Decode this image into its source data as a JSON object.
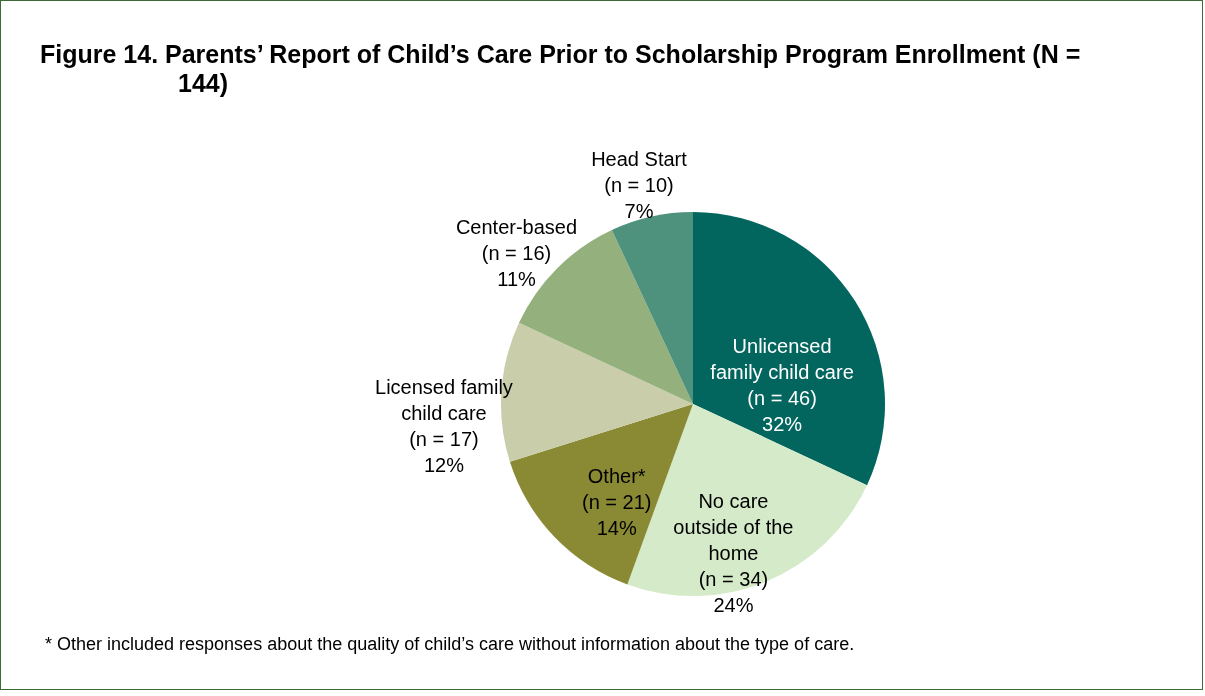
{
  "chart_data": {
    "type": "pie",
    "title": "Figure 14. Parents’ Report of Child’s Care Prior to Scholarship Program Enrollment (N = 144)",
    "categories": [
      "Unlicensed\nfamily child care",
      "No care\noutside of the\nhome",
      "Other*",
      "Licensed family\nchild care",
      "Center-based",
      "Head Start"
    ],
    "values": [
      46,
      34,
      21,
      17,
      16,
      10
    ],
    "value_labels": [
      "(n = 46)\n32%",
      "(n = 34)\n24%",
      "(n = 21)\n14%",
      "(n = 17)\n12%",
      "(n = 16)\n11%",
      "(n = 10)\n7%"
    ],
    "colors": [
      "#02665f",
      "#d4eac8",
      "#8a8a35",
      "#c9cdaa",
      "#94b07c",
      "#4e917c"
    ],
    "annotations": [
      "* Other included responses about the quality of child’s care without information about the type of care."
    ]
  }
}
